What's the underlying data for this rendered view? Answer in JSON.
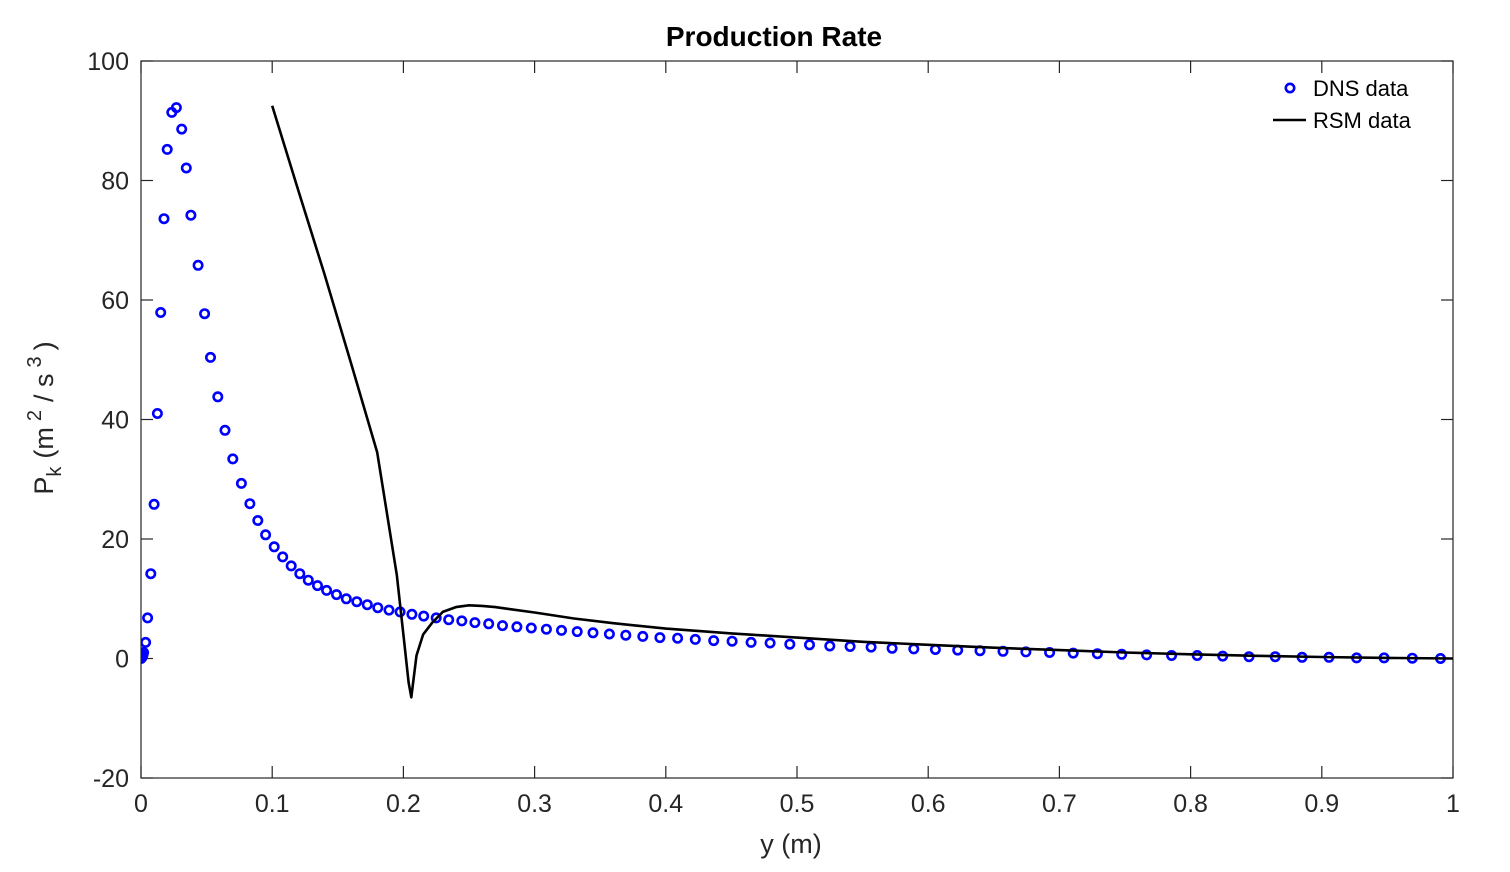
{
  "chart_data": {
    "type": "line",
    "title": "Production Rate",
    "xlabel": "y (m)",
    "ylabel": {
      "main": "P",
      "sub": "k",
      "unit_open": "(m",
      "unit_sup1": "2",
      "unit_mid": "/ s",
      "unit_sup2": "3",
      "unit_close": ")"
    },
    "xlim": [
      0,
      1
    ],
    "ylim": [
      -20,
      100
    ],
    "xticks": [
      0,
      0.1,
      0.2,
      0.3,
      0.4,
      0.5,
      0.6,
      0.7,
      0.8,
      0.9,
      1
    ],
    "xtick_labels": [
      "0",
      "0.1",
      "0.2",
      "0.3",
      "0.4",
      "0.5",
      "0.6",
      "0.7",
      "0.8",
      "0.9",
      "1"
    ],
    "yticks": [
      -20,
      0,
      20,
      40,
      60,
      80,
      100
    ],
    "ytick_labels": [
      "-20",
      "0",
      "20",
      "40",
      "60",
      "80",
      "100"
    ],
    "grid": false,
    "legend_position": "top-right",
    "series": [
      {
        "name": "DNS data",
        "style": "markers",
        "color": "#0000ff",
        "x": [
          0.0,
          0.0005,
          0.001,
          0.0015,
          0.002,
          0.0035,
          0.005,
          0.0075,
          0.01,
          0.0125,
          0.015,
          0.0175,
          0.02,
          0.0235,
          0.027,
          0.031,
          0.0345,
          0.038,
          0.0435,
          0.0485,
          0.053,
          0.0585,
          0.064,
          0.07,
          0.0765,
          0.083,
          0.089,
          0.095,
          0.1015,
          0.108,
          0.1145,
          0.121,
          0.1275,
          0.1345,
          0.1415,
          0.149,
          0.1565,
          0.1645,
          0.1725,
          0.1805,
          0.189,
          0.1975,
          0.2065,
          0.2155,
          0.225,
          0.2345,
          0.2445,
          0.2545,
          0.265,
          0.2755,
          0.2865,
          0.2975,
          0.309,
          0.3205,
          0.3325,
          0.3445,
          0.357,
          0.3695,
          0.3825,
          0.3955,
          0.409,
          0.4225,
          0.4365,
          0.4505,
          0.465,
          0.4795,
          0.4945,
          0.5095,
          0.525,
          0.5405,
          0.5565,
          0.5725,
          0.589,
          0.6055,
          0.6225,
          0.6395,
          0.657,
          0.6745,
          0.6925,
          0.7105,
          0.729,
          0.7475,
          0.7665,
          0.7855,
          0.805,
          0.8245,
          0.8445,
          0.8645,
          0.885,
          0.9055,
          0.9265,
          0.9475,
          0.969,
          0.9905
        ],
        "y": [
          0.0,
          0.1,
          0.3,
          0.6,
          1.0,
          2.7,
          6.8,
          14.2,
          25.8,
          41.0,
          57.9,
          73.6,
          85.2,
          91.4,
          92.2,
          88.6,
          82.1,
          74.2,
          65.8,
          57.7,
          50.4,
          43.8,
          38.2,
          33.4,
          29.3,
          25.9,
          23.1,
          20.7,
          18.7,
          17.0,
          15.5,
          14.2,
          13.1,
          12.2,
          11.4,
          10.7,
          10.0,
          9.5,
          9.0,
          8.5,
          8.1,
          7.8,
          7.4,
          7.1,
          6.8,
          6.5,
          6.3,
          6.0,
          5.8,
          5.5,
          5.3,
          5.1,
          4.9,
          4.7,
          4.5,
          4.3,
          4.1,
          3.9,
          3.7,
          3.5,
          3.4,
          3.2,
          3.0,
          2.9,
          2.7,
          2.6,
          2.4,
          2.3,
          2.1,
          2.0,
          1.9,
          1.7,
          1.6,
          1.5,
          1.4,
          1.3,
          1.2,
          1.1,
          1.0,
          0.9,
          0.8,
          0.7,
          0.6,
          0.5,
          0.5,
          0.4,
          0.3,
          0.3,
          0.2,
          0.2,
          0.1,
          0.1,
          0.05,
          0.0
        ]
      },
      {
        "name": "RSM data",
        "style": "line",
        "color": "#000000",
        "x": [
          0.1,
          0.12,
          0.14,
          0.16,
          0.18,
          0.195,
          0.2,
          0.204,
          0.206,
          0.21,
          0.215,
          0.222,
          0.23,
          0.24,
          0.25,
          0.26,
          0.27,
          0.28,
          0.3,
          0.33,
          0.36,
          0.4,
          0.45,
          0.5,
          0.55,
          0.6,
          0.65,
          0.7,
          0.75,
          0.8,
          0.85,
          0.9,
          0.95,
          1.0
        ],
        "y": [
          92.5,
          78.3,
          64.2,
          49.5,
          34.5,
          14.0,
          4.0,
          -4.0,
          -6.5,
          0.5,
          4.0,
          6.0,
          7.8,
          8.6,
          8.9,
          8.8,
          8.6,
          8.3,
          7.7,
          6.7,
          5.9,
          5.0,
          4.2,
          3.5,
          2.8,
          2.3,
          1.8,
          1.4,
          1.0,
          0.7,
          0.45,
          0.25,
          0.1,
          0.0
        ]
      }
    ]
  }
}
